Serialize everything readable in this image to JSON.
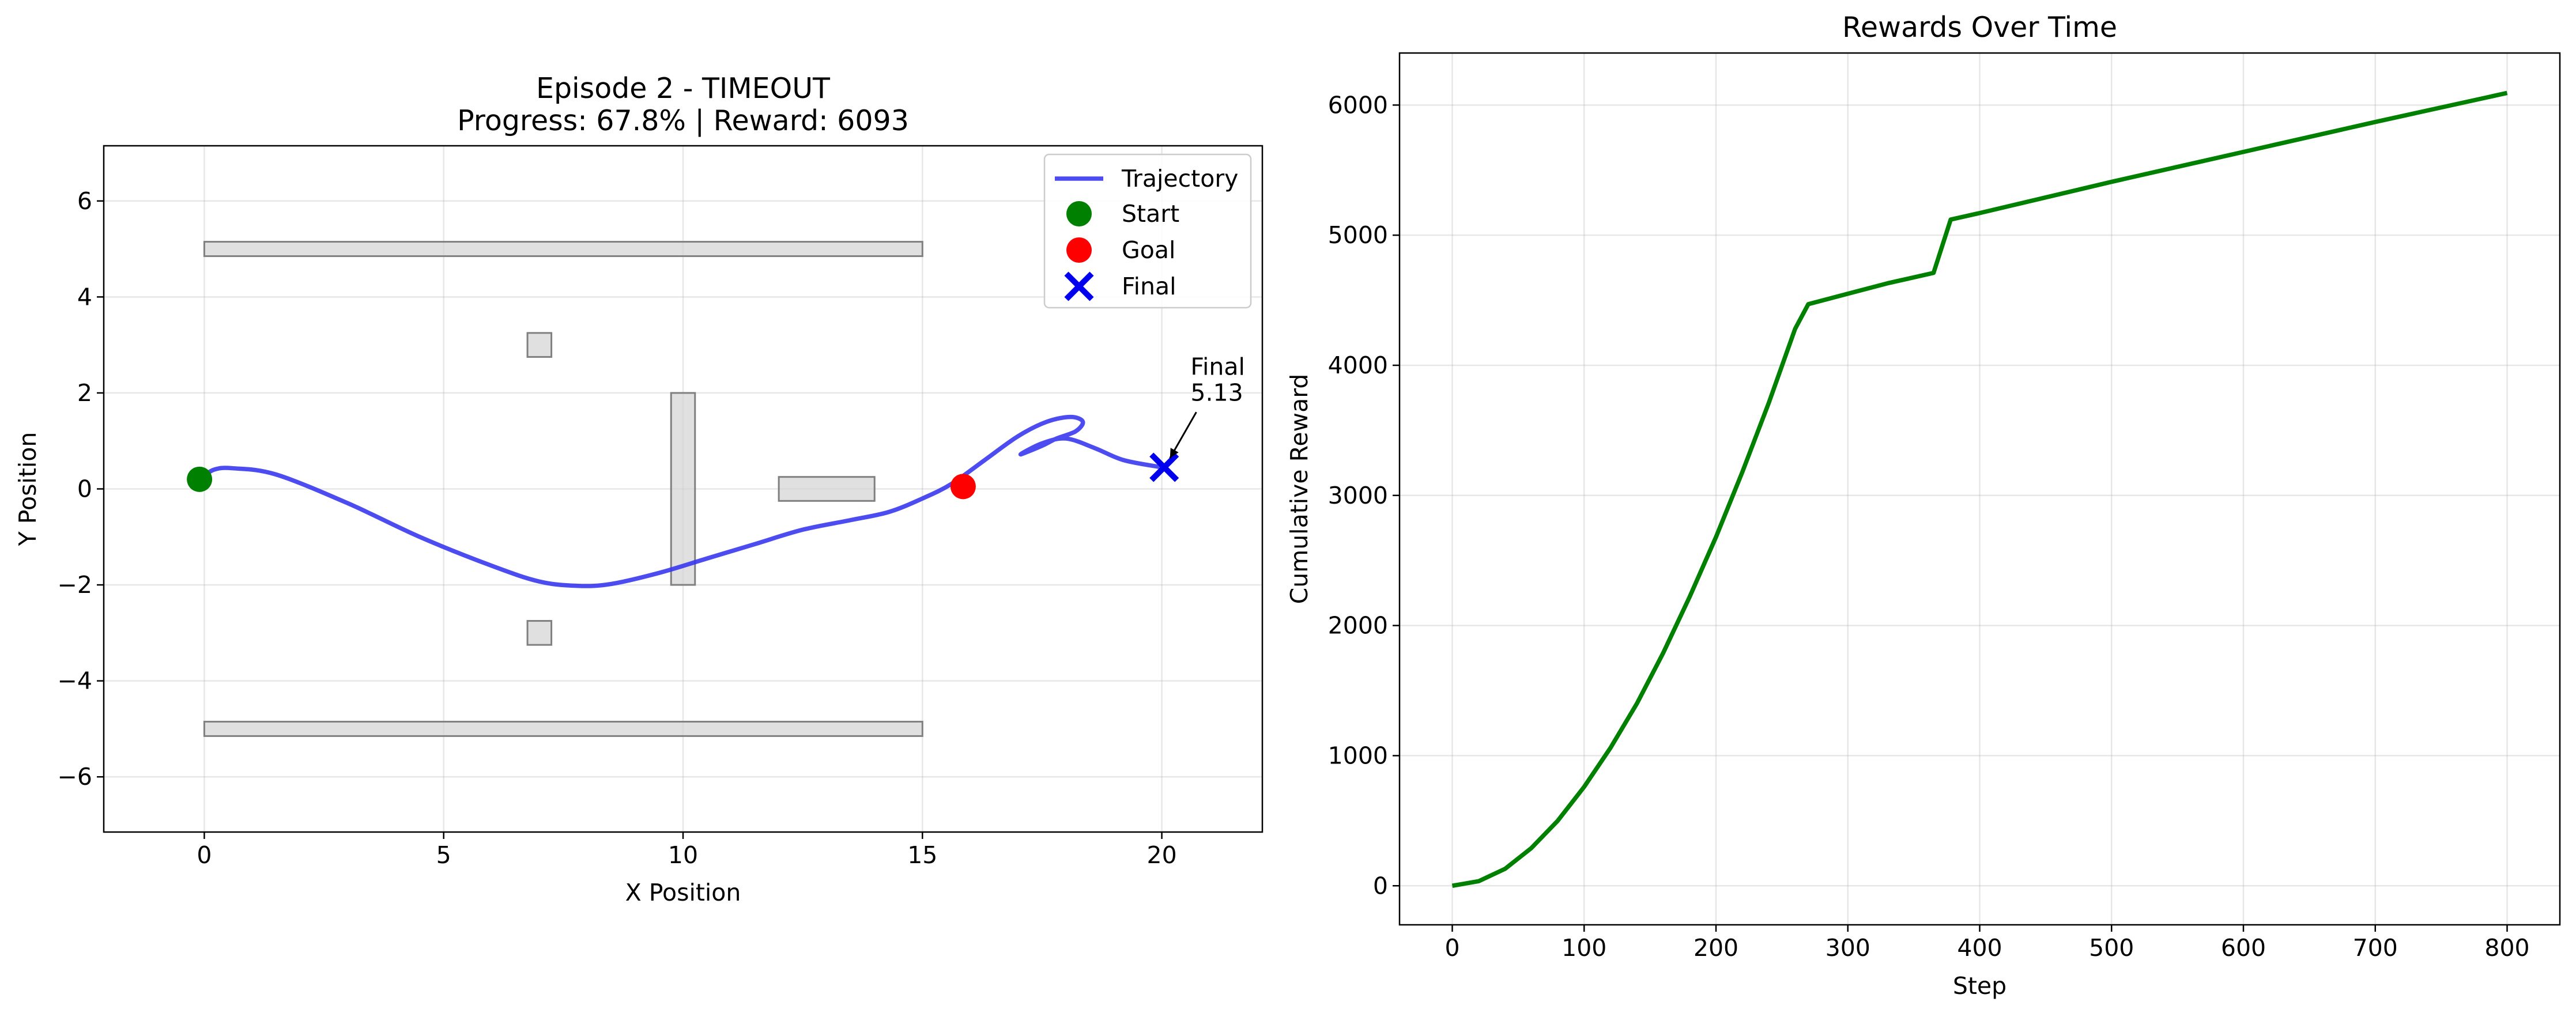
{
  "chart_data": [
    {
      "type": "scatter",
      "title_line1": "Episode 2 - TIMEOUT",
      "title_line2": "Progress: 67.8% | Reward: 6093",
      "xlabel": "X Position",
      "ylabel": "Y Position",
      "xlim": [
        -2.1,
        22.1
      ],
      "ylim": [
        -7.15,
        7.15
      ],
      "xticks": [
        0,
        5,
        10,
        15,
        20
      ],
      "yticks": [
        -6,
        -4,
        -2,
        0,
        2,
        4,
        6
      ],
      "grid": true,
      "legend_position": "top-right",
      "legend": [
        {
          "label": "Trajectory",
          "kind": "line",
          "color": "#3333ee"
        },
        {
          "label": "Start",
          "kind": "dot",
          "color": "#008000"
        },
        {
          "label": "Goal",
          "kind": "dot",
          "color": "#ff0000"
        },
        {
          "label": "Final",
          "kind": "x",
          "color": "#0000ee"
        }
      ],
      "obstacles": [
        {
          "x0": 0,
          "x1": 15,
          "y0": 4.85,
          "y1": 5.15
        },
        {
          "x0": 0,
          "x1": 15,
          "y0": -5.15,
          "y1": -4.85
        },
        {
          "x0": 6.75,
          "x1": 7.25,
          "y0": 2.75,
          "y1": 3.25
        },
        {
          "x0": 6.75,
          "x1": 7.25,
          "y0": -3.25,
          "y1": -2.75
        },
        {
          "x0": 9.75,
          "x1": 10.25,
          "y0": -2,
          "y1": 2
        },
        {
          "x0": 12,
          "x1": 14,
          "y0": -0.25,
          "y1": 0.25
        }
      ],
      "trajectory": [
        [
          -0.1,
          0.2
        ],
        [
          0.2,
          0.4
        ],
        [
          0.6,
          0.43
        ],
        [
          1.5,
          0.3
        ],
        [
          3.0,
          -0.3
        ],
        [
          4.5,
          -1.0
        ],
        [
          6.0,
          -1.6
        ],
        [
          7.0,
          -1.93
        ],
        [
          7.8,
          -2.02
        ],
        [
          8.5,
          -1.98
        ],
        [
          9.5,
          -1.75
        ],
        [
          10.5,
          -1.45
        ],
        [
          11.5,
          -1.15
        ],
        [
          12.5,
          -0.85
        ],
        [
          13.5,
          -0.65
        ],
        [
          14.3,
          -0.48
        ],
        [
          15.0,
          -0.2
        ],
        [
          15.6,
          0.1
        ],
        [
          16.3,
          0.6
        ],
        [
          17.0,
          1.1
        ],
        [
          17.6,
          1.4
        ],
        [
          18.1,
          1.5
        ],
        [
          18.35,
          1.4
        ],
        [
          18.2,
          1.2
        ],
        [
          17.8,
          1.05
        ],
        [
          17.5,
          0.9
        ],
        [
          17.05,
          0.72
        ],
        [
          17.5,
          0.95
        ],
        [
          18.0,
          1.05
        ],
        [
          18.6,
          0.85
        ],
        [
          19.2,
          0.6
        ],
        [
          20.0,
          0.45
        ]
      ],
      "start": {
        "x": -0.1,
        "y": 0.2
      },
      "goal": {
        "x": 15.85,
        "y": 0.05
      },
      "final": {
        "x": 20.05,
        "y": 0.45
      },
      "annotation": {
        "line1": "Final",
        "line2": "5.13",
        "x": 20.6,
        "y": 1.9
      }
    },
    {
      "type": "line",
      "title": "Rewards Over Time",
      "xlabel": "Step",
      "ylabel": "Cumulative Reward",
      "xlim": [
        -40,
        840
      ],
      "ylim": [
        -300,
        6400
      ],
      "xticks": [
        0,
        100,
        200,
        300,
        400,
        500,
        600,
        700,
        800
      ],
      "yticks": [
        0,
        1000,
        2000,
        3000,
        4000,
        5000,
        6000
      ],
      "grid": true,
      "color": "#008000",
      "points": [
        [
          0,
          0
        ],
        [
          20,
          35
        ],
        [
          40,
          130
        ],
        [
          60,
          290
        ],
        [
          80,
          500
        ],
        [
          100,
          760
        ],
        [
          120,
          1060
        ],
        [
          140,
          1400
        ],
        [
          160,
          1790
        ],
        [
          180,
          2220
        ],
        [
          200,
          2680
        ],
        [
          220,
          3180
        ],
        [
          240,
          3710
        ],
        [
          260,
          4280
        ],
        [
          270,
          4470
        ],
        [
          300,
          4550
        ],
        [
          330,
          4630
        ],
        [
          365,
          4710
        ],
        [
          378,
          5120
        ],
        [
          400,
          5170
        ],
        [
          500,
          5410
        ],
        [
          600,
          5640
        ],
        [
          700,
          5870
        ],
        [
          800,
          6093
        ]
      ]
    }
  ]
}
